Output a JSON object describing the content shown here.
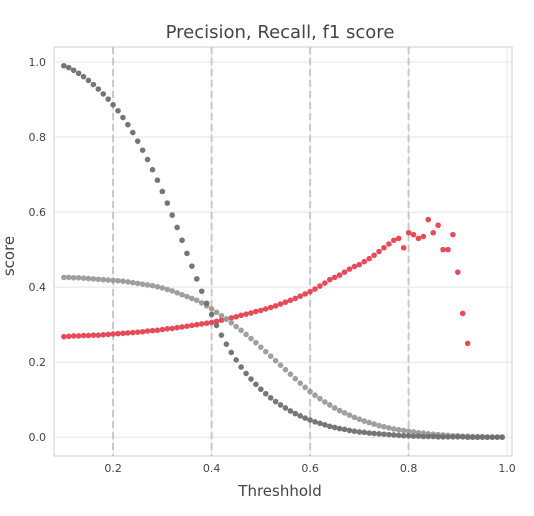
{
  "chart_data": {
    "type": "scatter",
    "title": "Precision, Recall, f1 score",
    "xlabel": "Threshhold",
    "ylabel": "score",
    "xlim": [
      0.08,
      1.01
    ],
    "ylim": [
      -0.05,
      1.04
    ],
    "xticks": [
      "0.2",
      "0.4",
      "0.6",
      "0.8",
      "1.0"
    ],
    "yticks": [
      "0.0",
      "0.2",
      "0.4",
      "0.6",
      "0.8",
      "1.0"
    ],
    "grid": true,
    "reference_lines_x": [
      0.2,
      0.4,
      0.6,
      0.8
    ],
    "series": [
      {
        "color": "#e8404f",
        "x": [
          0.1,
          0.11,
          0.12,
          0.13,
          0.14,
          0.15,
          0.16,
          0.17,
          0.18,
          0.19,
          0.2,
          0.21,
          0.22,
          0.23,
          0.24,
          0.25,
          0.26,
          0.27,
          0.28,
          0.29,
          0.3,
          0.31,
          0.32,
          0.33,
          0.34,
          0.35,
          0.36,
          0.37,
          0.38,
          0.39,
          0.4,
          0.41,
          0.42,
          0.43,
          0.44,
          0.45,
          0.46,
          0.47,
          0.48,
          0.49,
          0.5,
          0.51,
          0.52,
          0.53,
          0.54,
          0.55,
          0.56,
          0.57,
          0.58,
          0.59,
          0.6,
          0.61,
          0.62,
          0.63,
          0.64,
          0.65,
          0.66,
          0.67,
          0.68,
          0.69,
          0.7,
          0.71,
          0.72,
          0.73,
          0.74,
          0.75,
          0.76,
          0.77,
          0.78,
          0.79,
          0.8,
          0.81,
          0.82,
          0.83,
          0.84,
          0.85,
          0.86,
          0.87,
          0.88,
          0.89,
          0.9,
          0.91,
          0.92
        ],
        "y": [
          0.268,
          0.269,
          0.27,
          0.27,
          0.271,
          0.271,
          0.272,
          0.272,
          0.273,
          0.274,
          0.275,
          0.276,
          0.277,
          0.278,
          0.279,
          0.28,
          0.281,
          0.283,
          0.284,
          0.285,
          0.287,
          0.289,
          0.29,
          0.292,
          0.294,
          0.296,
          0.298,
          0.3,
          0.302,
          0.304,
          0.306,
          0.309,
          0.312,
          0.315,
          0.318,
          0.321,
          0.325,
          0.328,
          0.331,
          0.335,
          0.338,
          0.342,
          0.346,
          0.35,
          0.355,
          0.36,
          0.365,
          0.37,
          0.376,
          0.382,
          0.388,
          0.395,
          0.403,
          0.411,
          0.42,
          0.426,
          0.432,
          0.44,
          0.448,
          0.455,
          0.46,
          0.468,
          0.476,
          0.485,
          0.495,
          0.505,
          0.515,
          0.525,
          0.53,
          0.505,
          0.545,
          0.54,
          0.53,
          0.535,
          0.58,
          0.545,
          0.565,
          0.5,
          0.5,
          0.54,
          0.44,
          0.33,
          0.25
        ]
      },
      {
        "color": "#9c9a96",
        "x": [
          0.1,
          0.11,
          0.12,
          0.13,
          0.14,
          0.15,
          0.16,
          0.17,
          0.18,
          0.19,
          0.2,
          0.21,
          0.22,
          0.23,
          0.24,
          0.25,
          0.26,
          0.27,
          0.28,
          0.29,
          0.3,
          0.31,
          0.32,
          0.33,
          0.34,
          0.35,
          0.36,
          0.37,
          0.38,
          0.39,
          0.4,
          0.41,
          0.42,
          0.43,
          0.44,
          0.45,
          0.46,
          0.47,
          0.48,
          0.49,
          0.5,
          0.51,
          0.52,
          0.53,
          0.54,
          0.55,
          0.56,
          0.57,
          0.58,
          0.59,
          0.6,
          0.61,
          0.62,
          0.63,
          0.64,
          0.65,
          0.66,
          0.67,
          0.68,
          0.69,
          0.7,
          0.71,
          0.72,
          0.73,
          0.74,
          0.75,
          0.76,
          0.77,
          0.78,
          0.79,
          0.8,
          0.81,
          0.82,
          0.83,
          0.84,
          0.85,
          0.86,
          0.87,
          0.88,
          0.89,
          0.9,
          0.91,
          0.92,
          0.93,
          0.94,
          0.95,
          0.96,
          0.97,
          0.98,
          0.99
        ],
        "y": [
          0.426,
          0.426,
          0.425,
          0.425,
          0.424,
          0.423,
          0.422,
          0.421,
          0.42,
          0.419,
          0.418,
          0.417,
          0.416,
          0.414,
          0.412,
          0.41,
          0.408,
          0.406,
          0.404,
          0.401,
          0.398,
          0.394,
          0.39,
          0.385,
          0.38,
          0.375,
          0.37,
          0.365,
          0.358,
          0.35,
          0.342,
          0.333,
          0.324,
          0.315,
          0.305,
          0.295,
          0.285,
          0.274,
          0.263,
          0.252,
          0.24,
          0.228,
          0.216,
          0.204,
          0.192,
          0.18,
          0.168,
          0.156,
          0.144,
          0.133,
          0.122,
          0.112,
          0.103,
          0.094,
          0.086,
          0.078,
          0.071,
          0.065,
          0.059,
          0.053,
          0.048,
          0.043,
          0.039,
          0.035,
          0.031,
          0.028,
          0.025,
          0.022,
          0.02,
          0.018,
          0.016,
          0.014,
          0.012,
          0.011,
          0.009,
          0.008,
          0.007,
          0.006,
          0.005,
          0.004,
          0.004,
          0.003,
          0.003,
          0.002,
          0.002,
          0.002,
          0.001,
          0.001,
          0.001,
          0.001
        ]
      },
      {
        "color": "#6f6f6f",
        "x": [
          0.1,
          0.11,
          0.12,
          0.13,
          0.14,
          0.15,
          0.16,
          0.17,
          0.18,
          0.19,
          0.2,
          0.21,
          0.22,
          0.23,
          0.24,
          0.25,
          0.26,
          0.27,
          0.28,
          0.29,
          0.3,
          0.31,
          0.32,
          0.33,
          0.34,
          0.35,
          0.36,
          0.37,
          0.38,
          0.39,
          0.4,
          0.41,
          0.42,
          0.43,
          0.44,
          0.45,
          0.46,
          0.47,
          0.48,
          0.49,
          0.5,
          0.51,
          0.52,
          0.53,
          0.54,
          0.55,
          0.56,
          0.57,
          0.58,
          0.59,
          0.6,
          0.61,
          0.62,
          0.63,
          0.64,
          0.65,
          0.66,
          0.67,
          0.68,
          0.69,
          0.7,
          0.71,
          0.72,
          0.73,
          0.74,
          0.75,
          0.76,
          0.77,
          0.78,
          0.79,
          0.8,
          0.81,
          0.82,
          0.83,
          0.84,
          0.85,
          0.86,
          0.87,
          0.88,
          0.89,
          0.9,
          0.91,
          0.92,
          0.93,
          0.94,
          0.95,
          0.96,
          0.97,
          0.98,
          0.99
        ],
        "y": [
          0.99,
          0.985,
          0.978,
          0.97,
          0.961,
          0.951,
          0.94,
          0.928,
          0.915,
          0.901,
          0.886,
          0.87,
          0.852,
          0.833,
          0.812,
          0.789,
          0.765,
          0.74,
          0.713,
          0.685,
          0.655,
          0.624,
          0.592,
          0.559,
          0.525,
          0.49,
          0.456,
          0.422,
          0.389,
          0.357,
          0.327,
          0.298,
          0.272,
          0.248,
          0.226,
          0.206,
          0.187,
          0.17,
          0.155,
          0.141,
          0.128,
          0.116,
          0.105,
          0.095,
          0.086,
          0.078,
          0.07,
          0.063,
          0.057,
          0.051,
          0.046,
          0.041,
          0.037,
          0.033,
          0.029,
          0.026,
          0.023,
          0.021,
          0.018,
          0.016,
          0.014,
          0.013,
          0.011,
          0.01,
          0.009,
          0.008,
          0.007,
          0.006,
          0.005,
          0.004,
          0.004,
          0.003,
          0.003,
          0.002,
          0.002,
          0.002,
          0.001,
          0.001,
          0.001,
          0.001,
          0.001,
          0.001,
          0.0,
          0.0,
          0.0,
          0.0,
          0.0,
          0.0,
          0.0,
          0.0
        ]
      }
    ]
  }
}
